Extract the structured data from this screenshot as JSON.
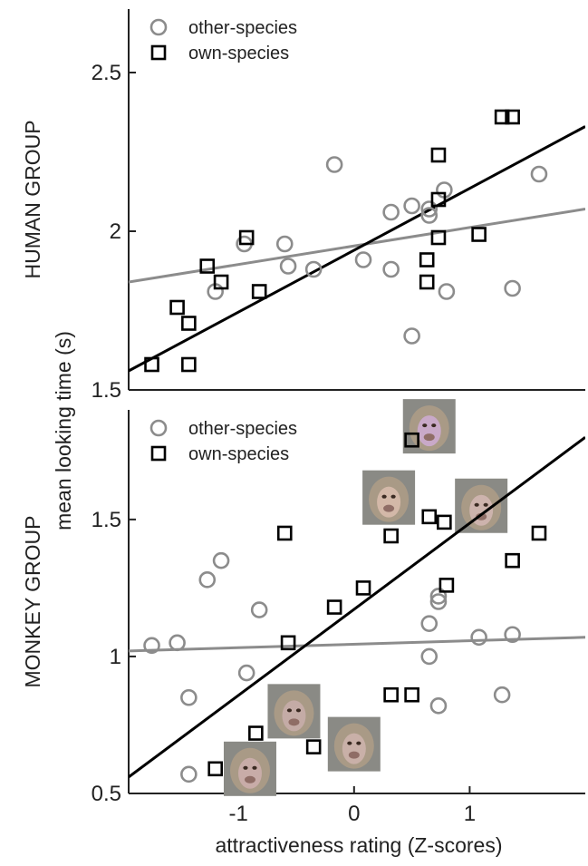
{
  "figure": {
    "ylabel": "mean looking time (s)",
    "xlabel": "attractiveness rating (Z-scores)"
  },
  "colors": {
    "other_species": "#8c8c8c",
    "own_species": "#000000",
    "axes": "#222222",
    "thumbnail_bg": "#8a8a85"
  },
  "chart_data": [
    {
      "type": "scatter",
      "panel_label": "HUMAN GROUP",
      "xlim": [
        -1.95,
        2.0
      ],
      "ylim": [
        1.5,
        2.7
      ],
      "yticks": [
        1.5,
        2,
        2.5
      ],
      "ytick_labels": [
        "1.5",
        "2",
        "2.5"
      ],
      "legend": {
        "placement": "top-left",
        "entries": [
          "other-species",
          "own-species"
        ]
      },
      "series": [
        {
          "name": "other-species",
          "marker": "circle",
          "color": "#8c8c8c",
          "points": [
            [
              -1.2,
              1.81
            ],
            [
              -0.95,
              1.96
            ],
            [
              -0.6,
              1.96
            ],
            [
              -0.57,
              1.89
            ],
            [
              -0.35,
              1.88
            ],
            [
              -0.17,
              2.21
            ],
            [
              0.08,
              1.91
            ],
            [
              0.32,
              2.06
            ],
            [
              0.32,
              1.88
            ],
            [
              0.5,
              2.08
            ],
            [
              0.5,
              1.67
            ],
            [
              0.65,
              2.07
            ],
            [
              0.65,
              2.05
            ],
            [
              0.78,
              2.13
            ],
            [
              0.8,
              1.81
            ],
            [
              1.37,
              1.82
            ],
            [
              1.6,
              2.18
            ]
          ]
        },
        {
          "name": "own-species",
          "marker": "square",
          "color": "#000000",
          "points": [
            [
              -1.75,
              1.58
            ],
            [
              -1.53,
              1.76
            ],
            [
              -1.43,
              1.71
            ],
            [
              -1.43,
              1.58
            ],
            [
              -1.27,
              1.89
            ],
            [
              -1.15,
              1.84
            ],
            [
              -0.93,
              1.98
            ],
            [
              -0.82,
              1.81
            ],
            [
              0.63,
              1.91
            ],
            [
              0.63,
              1.84
            ],
            [
              0.73,
              2.24
            ],
            [
              0.73,
              2.1
            ],
            [
              0.73,
              1.98
            ],
            [
              1.08,
              1.99
            ],
            [
              1.28,
              2.36
            ],
            [
              1.37,
              2.36
            ]
          ]
        }
      ],
      "fit_lines": [
        {
          "name": "other-species",
          "color": "#8c8c8c",
          "x": [
            -1.95,
            2.0
          ],
          "y": [
            1.84,
            2.07
          ]
        },
        {
          "name": "own-species",
          "color": "#000000",
          "x": [
            -1.95,
            2.0
          ],
          "y": [
            1.56,
            2.33
          ]
        }
      ]
    },
    {
      "type": "scatter",
      "panel_label": "MONKEY GROUP",
      "xlim": [
        -1.95,
        2.0
      ],
      "ylim": [
        0.5,
        1.9
      ],
      "xticks": [
        -1,
        0,
        1
      ],
      "xtick_labels": [
        "-1",
        "0",
        "1"
      ],
      "yticks": [
        0.5,
        1,
        1.5
      ],
      "ytick_labels": [
        "0.5",
        "1",
        "1.5"
      ],
      "legend": {
        "placement": "top-left",
        "entries": [
          "other-species",
          "own-species"
        ]
      },
      "series": [
        {
          "name": "other-species",
          "marker": "circle",
          "color": "#8c8c8c",
          "points": [
            [
              -1.75,
              1.04
            ],
            [
              -1.53,
              1.05
            ],
            [
              -1.43,
              0.85
            ],
            [
              -1.43,
              0.57
            ],
            [
              -1.27,
              1.28
            ],
            [
              -1.15,
              1.35
            ],
            [
              -0.93,
              0.94
            ],
            [
              -0.82,
              1.17
            ],
            [
              0.65,
              1.12
            ],
            [
              0.65,
              1.0
            ],
            [
              0.73,
              1.22
            ],
            [
              0.73,
              1.2
            ],
            [
              0.73,
              0.82
            ],
            [
              1.08,
              1.07
            ],
            [
              1.28,
              0.86
            ],
            [
              1.37,
              1.08
            ]
          ]
        },
        {
          "name": "own-species",
          "marker": "square",
          "color": "#000000",
          "points": [
            [
              -1.2,
              0.59
            ],
            [
              -0.85,
              0.72
            ],
            [
              -0.6,
              1.45
            ],
            [
              -0.57,
              1.05
            ],
            [
              -0.35,
              0.67
            ],
            [
              -0.17,
              1.18
            ],
            [
              0.08,
              1.25
            ],
            [
              0.32,
              1.44
            ],
            [
              0.32,
              0.86
            ],
            [
              0.5,
              1.79
            ],
            [
              0.5,
              0.86
            ],
            [
              0.65,
              1.51
            ],
            [
              0.78,
              1.49
            ],
            [
              0.8,
              1.26
            ],
            [
              1.37,
              1.35
            ],
            [
              1.6,
              1.45
            ]
          ]
        }
      ],
      "fit_lines": [
        {
          "name": "other-species",
          "color": "#8c8c8c",
          "x": [
            -1.95,
            2.0
          ],
          "y": [
            1.02,
            1.07
          ]
        },
        {
          "name": "own-species",
          "color": "#000000",
          "x": [
            -1.95,
            2.0
          ],
          "y": [
            0.56,
            1.8
          ]
        }
      ],
      "thumbnails": [
        {
          "subject": "monkey-face",
          "x": 0.65,
          "y": 1.84,
          "face_color": "#c9a9c8"
        },
        {
          "subject": "monkey-face",
          "x": 0.3,
          "y": 1.58,
          "face_color": "#d3b8a8"
        },
        {
          "subject": "monkey-face",
          "x": 1.1,
          "y": 1.55,
          "face_color": "#cdb3ad"
        },
        {
          "subject": "monkey-face",
          "x": -0.52,
          "y": 0.8,
          "face_color": "#c4aba6"
        },
        {
          "subject": "monkey-face",
          "x": 0.0,
          "y": 0.68,
          "face_color": "#c9b0a8"
        },
        {
          "subject": "monkey-face",
          "x": -0.9,
          "y": 0.59,
          "face_color": "#c8aca8"
        }
      ]
    }
  ]
}
